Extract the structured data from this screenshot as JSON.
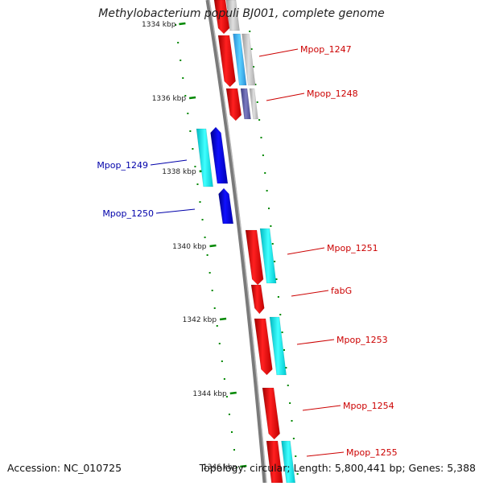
{
  "title": "Methylobacterium populi BJ001, complete genome",
  "ticks": [
    "1334 kbp",
    "1336 kbp",
    "1338 kbp",
    "1340 kbp",
    "1342 kbp",
    "1344 kbp",
    "1346 kbp"
  ],
  "genes": [
    {
      "label": "Mpop_1247",
      "strand": "+",
      "color": "#cc0000"
    },
    {
      "label": "Mpop_1248",
      "strand": "+",
      "color": "#cc0000"
    },
    {
      "label": "Mpop_1249",
      "strand": "-",
      "color": "#0000aa"
    },
    {
      "label": "Mpop_1250",
      "strand": "-",
      "color": "#0000aa"
    },
    {
      "label": "Mpop_1251",
      "strand": "+",
      "color": "#cc0000"
    },
    {
      "label": "fabG",
      "strand": "+",
      "color": "#cc0000"
    },
    {
      "label": "Mpop_1253",
      "strand": "+",
      "color": "#cc0000"
    },
    {
      "label": "Mpop_1254",
      "strand": "+",
      "color": "#cc0000"
    },
    {
      "label": "Mpop_1255",
      "strand": "+",
      "color": "#cc0000"
    }
  ],
  "colors": {
    "forward_cds": "#ff0000",
    "reverse_cds": "#0000ff",
    "cyan_feature": "#00e5e5",
    "backbone": "#888888",
    "tick": "#008800"
  },
  "footer": {
    "accession": "Accession: NC_010725",
    "summary": "Topology: circular; Length: 5,800,441 bp; Genes: 5,388"
  }
}
